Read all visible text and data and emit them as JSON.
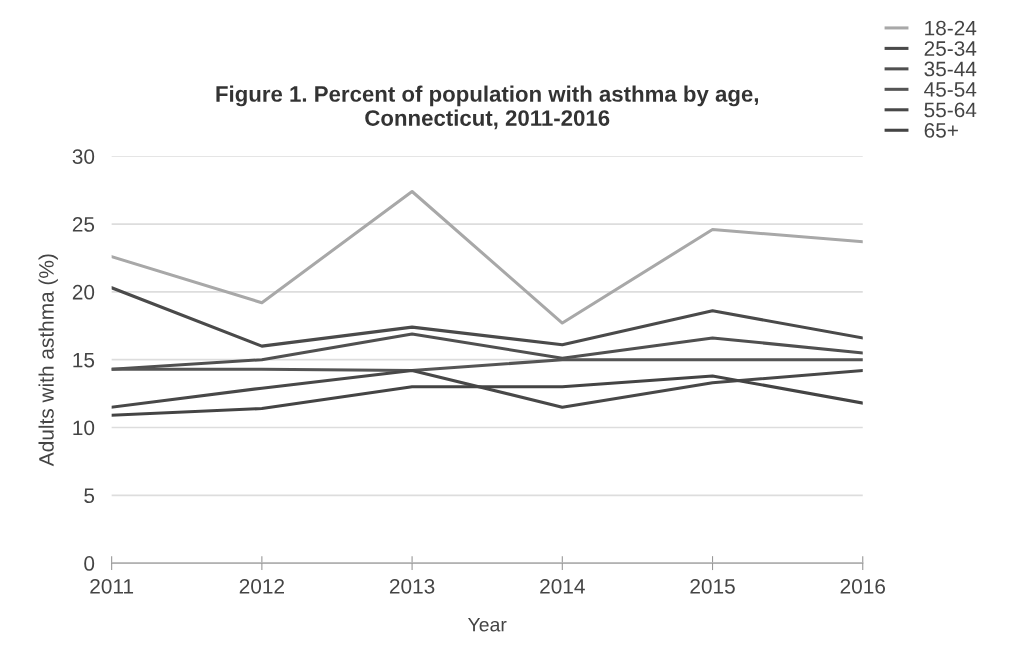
{
  "chart_data": {
    "type": "line",
    "title": "Figure 1. Percent of population with asthma by age,\nConnecticut, 2011-2016",
    "xlabel": "Year",
    "ylabel": "Adults with asthma (%)",
    "x": [
      2011,
      2012,
      2013,
      2014,
      2015,
      2016
    ],
    "series": [
      {
        "name": "18-24",
        "color": "#a8a8a8",
        "values": [
          22.6,
          19.2,
          27.4,
          17.7,
          24.6,
          23.7
        ]
      },
      {
        "name": "25-34",
        "color": "#4a4a4a",
        "values": [
          20.3,
          16.0,
          17.4,
          16.1,
          18.6,
          16.6
        ]
      },
      {
        "name": "35-44",
        "color": "#505050",
        "values": [
          14.3,
          15.0,
          16.9,
          15.1,
          16.6,
          15.5
        ]
      },
      {
        "name": "45-54",
        "color": "#555555",
        "values": [
          14.3,
          14.3,
          14.2,
          15.0,
          15.0,
          15.0
        ]
      },
      {
        "name": "55-64",
        "color": "#484848",
        "values": [
          11.5,
          12.9,
          14.2,
          11.5,
          13.3,
          14.2
        ]
      },
      {
        "name": "65+",
        "color": "#444444",
        "values": [
          10.9,
          11.4,
          13.0,
          13.0,
          13.8,
          11.8
        ]
      }
    ],
    "xlim": [
      2011,
      2016
    ],
    "xticks": [
      2011,
      2012,
      2013,
      2014,
      2015,
      2016
    ],
    "ylim": [
      0,
      30
    ],
    "yticks": [
      0,
      5,
      10,
      15,
      20,
      25,
      30
    ],
    "grid": "y",
    "legend": "top right",
    "marker": "none",
    "line_style": "solid"
  }
}
